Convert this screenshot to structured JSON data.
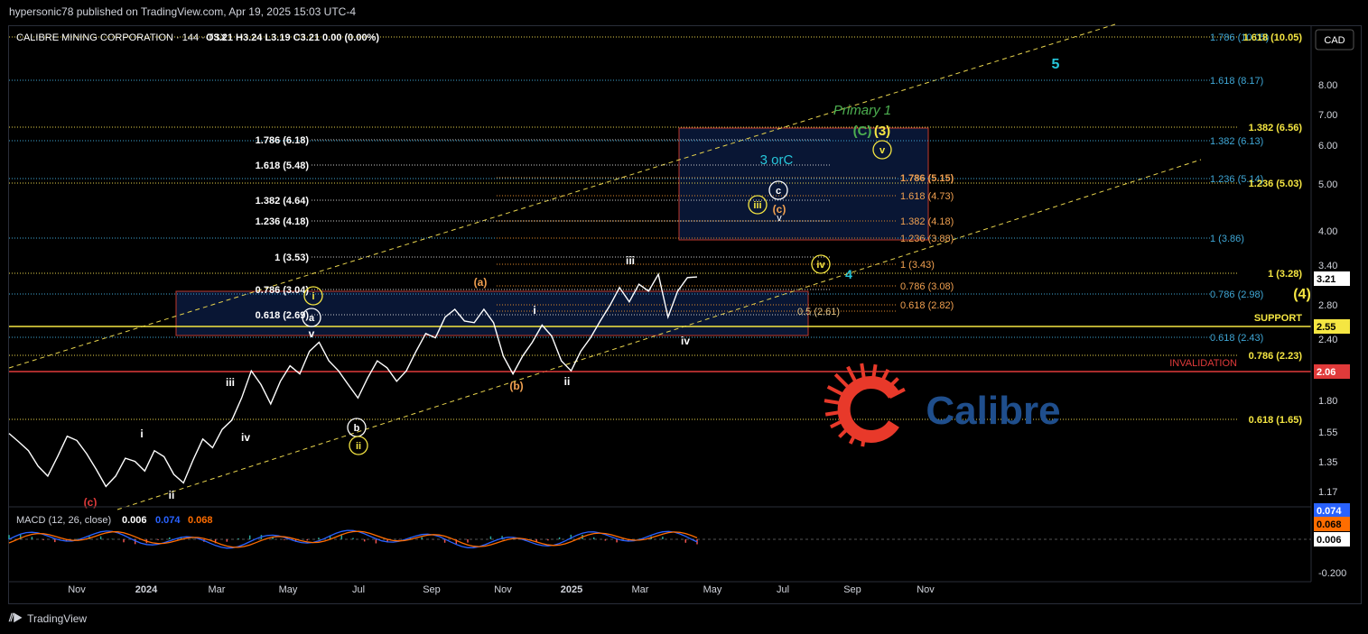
{
  "header": {
    "published": "hypersonic78 published on TradingView.com, Apr 19, 2025 15:03 UTC-4",
    "symbol": "CALIBRE MINING CORPORATION · 144 · TSX",
    "ohlc": "O3.21  H3.24  L3.19  C3.21  0.00 (0.00%)",
    "currency": "CAD"
  },
  "footer": {
    "brand": "TradingView"
  },
  "logo": {
    "text": "Calibre",
    "color": "#1f4e8c",
    "accent": "#e8392a"
  },
  "colors": {
    "background": "#000000",
    "price": "#ffffff",
    "support": "#f5e642",
    "invalidation": "#e03a3a",
    "channel": "#e8d44d"
  },
  "chart_data": {
    "type": "line",
    "title": "CALIBRE MINING CORPORATION · 144 · TSX",
    "scale": "log",
    "ylim": [
      1.1,
      12
    ],
    "xlabel": "",
    "ylabel": "",
    "x_tick_labels": [
      "Nov",
      "2024",
      "Mar",
      "May",
      "Jul",
      "Sep",
      "Nov",
      "2025",
      "Mar",
      "May",
      "Jul",
      "Sep",
      "Nov"
    ],
    "y_tick_labels": [
      "8.00",
      "7.00",
      "6.00",
      "5.00",
      "4.00",
      "3.40",
      "2.80",
      "2.40",
      "1.80",
      "1.55",
      "1.35",
      "1.17"
    ],
    "last_price": "3.21",
    "series": [
      {
        "values": [
          1.52,
          1.46,
          1.4,
          1.3,
          1.24,
          1.36,
          1.5,
          1.47,
          1.38,
          1.28,
          1.18,
          1.24,
          1.35,
          1.33,
          1.27,
          1.4,
          1.36,
          1.25,
          1.2,
          1.34,
          1.48,
          1.42,
          1.55,
          1.62,
          1.8,
          2.05,
          1.92,
          1.75,
          1.95,
          2.1,
          2.02,
          2.25,
          2.35,
          2.15,
          2.05,
          1.92,
          1.8,
          1.98,
          2.15,
          2.08,
          1.95,
          2.05,
          2.25,
          2.45,
          2.4,
          2.65,
          2.75,
          2.6,
          2.58,
          2.75,
          2.58,
          2.2,
          2.02,
          2.2,
          2.35,
          2.55,
          2.42,
          2.15,
          2.05,
          2.25,
          2.4,
          2.6,
          2.8,
          3.05,
          2.85,
          3.1,
          3.0,
          3.25,
          2.65,
          3.0,
          3.2,
          3.21
        ]
      }
    ],
    "annotations": {
      "waves": [
        "i",
        "ii",
        "iii",
        "iv",
        "v",
        "(a)",
        "(b)",
        "(c)",
        "i",
        "ii",
        "iii",
        "iv",
        "ⓘ",
        "ⓐ",
        "ⓑ",
        "ⓘⓘ",
        "ⓘⓘⓘ",
        "ⓒ",
        "ⓘⓥ",
        "ⓥ",
        "(c)",
        "4",
        "5",
        "(C)",
        "(3)",
        "(4)",
        "Primary 1",
        "3 or C"
      ],
      "fib_left": [
        "1.786 (6.18)",
        "1.618 (5.48)",
        "1.382 (4.64)",
        "1.236 (4.18)",
        "1 (3.53)",
        "0.786 (3.04)",
        "0.618 (2.69)"
      ],
      "fib_mid": [
        "1.786 (5.15)",
        "1.618 (4.73)",
        "1.382 (4.18)",
        "1.236 (3.88)",
        "1 (3.43)",
        "0.786 (3.08)",
        "0.618 (2.82)",
        "0.5 (2.61)"
      ],
      "fib_right_cyan": [
        "1.786 (10.05)",
        "1.618 (8.17)",
        "1.382 (6.13)",
        "1.236 (5.14)",
        "1 (3.86)",
        "0.786 (2.98)",
        "0.618 (2.43)"
      ],
      "fib_right_yellow": [
        "1.618 (10.05)",
        "1.382 (6.56)",
        "1.236 (5.03)",
        "1 (3.28)",
        "0.786 (2.23)",
        "0.618 (1.65)"
      ],
      "support": "SUPPORT",
      "support_value": "2.55",
      "invalidation": "INVALIDATION",
      "invalidation_value": "2.06"
    },
    "macd": {
      "label": "MACD (12, 26, close)",
      "hist": "0.006",
      "macd": "0.074",
      "signal": "0.068",
      "y_tick_labels": [
        "-0.200"
      ]
    }
  }
}
